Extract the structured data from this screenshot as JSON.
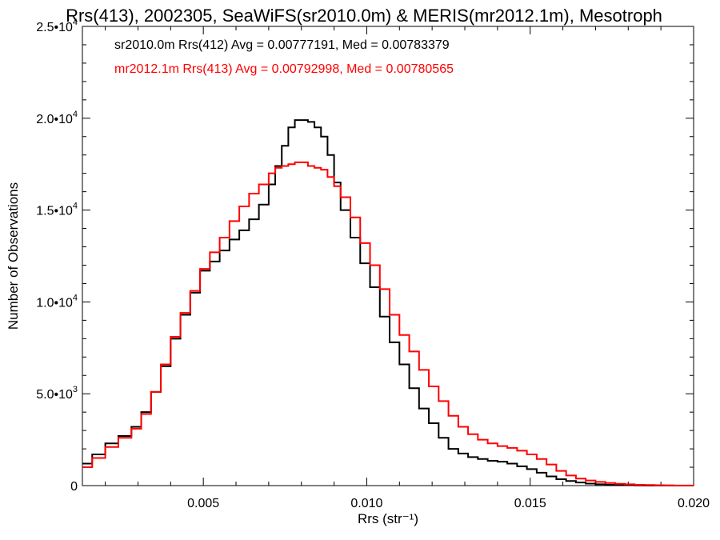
{
  "chart_data": {
    "type": "line",
    "title": "Rrs(413), 2002305, SeaWiFS(sr2010.0m) & MERIS(mr2012.1m), Mesotroph",
    "xlabel": "Rrs (str⁻¹)",
    "ylabel": "Number of Observations",
    "xlim": [
      0.0013,
      0.02
    ],
    "ylim": [
      0,
      25000
    ],
    "x_ticks": [
      {
        "value": 0.005,
        "label": "0.005"
      },
      {
        "value": 0.01,
        "label": "0.010"
      },
      {
        "value": 0.015,
        "label": "0.015"
      },
      {
        "value": 0.02,
        "label": "0.020"
      }
    ],
    "y_ticks": [
      {
        "value": 0,
        "mant": "0",
        "exp": ""
      },
      {
        "value": 5000,
        "mant": "5.0•10",
        "exp": "3"
      },
      {
        "value": 10000,
        "mant": "1.0•10",
        "exp": "4"
      },
      {
        "value": 15000,
        "mant": "1.5•10",
        "exp": "4"
      },
      {
        "value": 20000,
        "mant": "2.0•10",
        "exp": "4"
      },
      {
        "value": 25000,
        "mant": "2.5•10",
        "exp": "4"
      }
    ],
    "grid": false,
    "legend": "top-left",
    "series": [
      {
        "name": "sr2010.0m Rrs(412)",
        "legend_text": "sr2010.0m Rrs(412) Avg = 0.00777191, Med = 0.00783379",
        "color": "#000000",
        "x": [
          0.0013,
          0.0016,
          0.002,
          0.0024,
          0.0028,
          0.0031,
          0.0034,
          0.0037,
          0.004,
          0.0043,
          0.0046,
          0.0049,
          0.0052,
          0.0055,
          0.0058,
          0.0061,
          0.0064,
          0.0067,
          0.007,
          0.0072,
          0.0074,
          0.0076,
          0.0078,
          0.008,
          0.0082,
          0.0084,
          0.0086,
          0.0088,
          0.009,
          0.0092,
          0.0095,
          0.0098,
          0.0101,
          0.0104,
          0.0107,
          0.011,
          0.0113,
          0.0116,
          0.0119,
          0.0122,
          0.0125,
          0.0128,
          0.0131,
          0.0134,
          0.0137,
          0.014,
          0.0143,
          0.0146,
          0.0149,
          0.0152,
          0.0155,
          0.0158,
          0.0161,
          0.0164,
          0.0167,
          0.017,
          0.0173,
          0.0176,
          0.0179,
          0.0182,
          0.0185,
          0.0188,
          0.0191,
          0.0194,
          0.0197,
          0.02
        ],
        "y": [
          1200,
          1700,
          2300,
          2700,
          3200,
          4000,
          5100,
          6500,
          8000,
          9300,
          10500,
          11700,
          12200,
          12800,
          13400,
          13900,
          14500,
          15300,
          16400,
          17400,
          18500,
          19500,
          19900,
          19900,
          19800,
          19500,
          19000,
          18000,
          16500,
          15000,
          13500,
          12100,
          10800,
          9200,
          7800,
          6600,
          5300,
          4200,
          3400,
          2600,
          2000,
          1750,
          1550,
          1450,
          1350,
          1300,
          1200,
          1050,
          900,
          700,
          500,
          350,
          250,
          170,
          110,
          70,
          45,
          30,
          20,
          12,
          8,
          5,
          3,
          2,
          1,
          0
        ]
      },
      {
        "name": "mr2012.1m Rrs(413)",
        "legend_text": "mr2012.1m Rrs(413) Avg = 0.00792998, Med = 0.00780565",
        "color": "#ff0000",
        "x": [
          0.0013,
          0.0016,
          0.002,
          0.0024,
          0.0028,
          0.0031,
          0.0034,
          0.0037,
          0.004,
          0.0043,
          0.0046,
          0.0049,
          0.0052,
          0.0055,
          0.0058,
          0.0061,
          0.0064,
          0.0067,
          0.007,
          0.0072,
          0.0074,
          0.0076,
          0.0078,
          0.008,
          0.0082,
          0.0084,
          0.0086,
          0.0088,
          0.009,
          0.0092,
          0.0095,
          0.0098,
          0.0101,
          0.0104,
          0.0107,
          0.011,
          0.0113,
          0.0116,
          0.0119,
          0.0122,
          0.0125,
          0.0128,
          0.0131,
          0.0134,
          0.0137,
          0.014,
          0.0143,
          0.0146,
          0.0149,
          0.0152,
          0.0155,
          0.0158,
          0.0161,
          0.0164,
          0.0167,
          0.017,
          0.0173,
          0.0176,
          0.0179,
          0.0182,
          0.0185,
          0.0188,
          0.0191,
          0.0194,
          0.0197,
          0.02
        ],
        "y": [
          1000,
          1500,
          2100,
          2600,
          3100,
          3900,
          5100,
          6600,
          8100,
          9400,
          10600,
          11800,
          12700,
          13500,
          14400,
          15200,
          15900,
          16400,
          17000,
          17300,
          17400,
          17500,
          17600,
          17600,
          17400,
          17300,
          17200,
          16800,
          16300,
          15700,
          14600,
          13200,
          12000,
          10700,
          9300,
          8200,
          7300,
          6300,
          5400,
          4600,
          3800,
          3200,
          2800,
          2500,
          2300,
          2150,
          2050,
          1900,
          1700,
          1450,
          1150,
          800,
          550,
          380,
          280,
          200,
          140,
          100,
          70,
          45,
          30,
          20,
          12,
          8,
          4,
          0
        ]
      }
    ]
  }
}
